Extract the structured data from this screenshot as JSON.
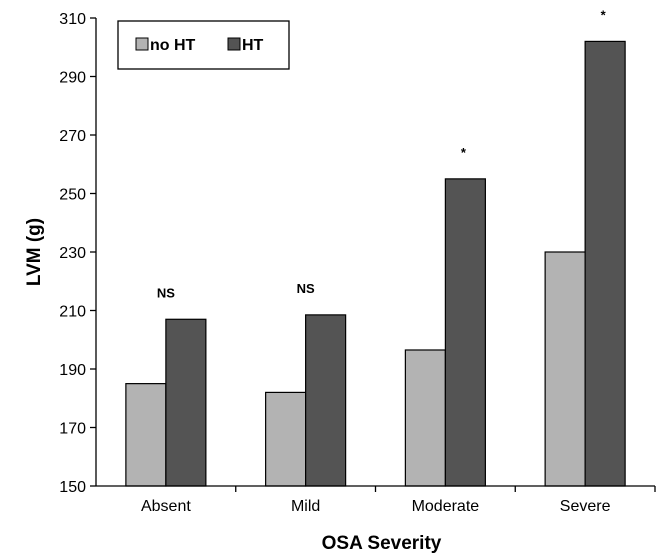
{
  "chart_data": {
    "type": "bar",
    "title": "",
    "xlabel": "OSA Severity",
    "ylabel": "LVM (g)",
    "categories": [
      "Absent",
      "Mild",
      "Moderate",
      "Severe"
    ],
    "series": [
      {
        "name": "no HT",
        "values": [
          185,
          182,
          196.5,
          230
        ],
        "color": "#b3b3b3"
      },
      {
        "name": "HT",
        "values": [
          207,
          208.5,
          255,
          302
        ],
        "color": "#545454"
      }
    ],
    "ylim": [
      150,
      310
    ],
    "yticks": [
      150,
      170,
      190,
      210,
      230,
      250,
      270,
      290,
      310
    ],
    "annotations": [
      "NS",
      "NS",
      "*",
      "*"
    ],
    "legend": "top-left",
    "grid": false
  }
}
